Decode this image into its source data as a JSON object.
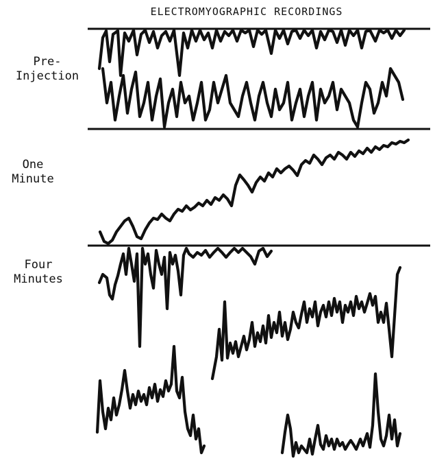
{
  "title": "ELECTROMYOGRAPHIC RECORDINGS",
  "rows": [
    {
      "id": "pre",
      "label_line1": "Pre-",
      "label_line2": "Injection"
    },
    {
      "id": "one",
      "label_line1": "One",
      "label_line2": "Minute"
    },
    {
      "id": "four",
      "label_line1": "Four",
      "label_line2": "Minutes"
    }
  ],
  "colors": {
    "ink": "#111111",
    "paper": "#ffffff"
  }
}
